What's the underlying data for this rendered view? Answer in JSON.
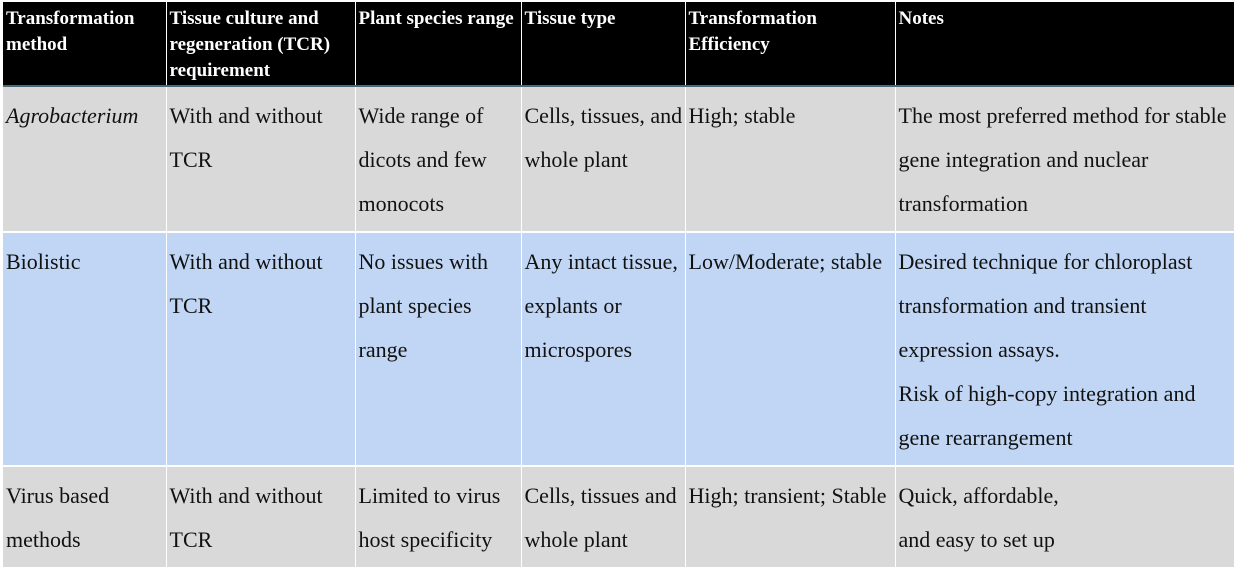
{
  "columns": [
    "Transformation method",
    "Tissue culture and regeneration (TCR) requirement",
    "Plant species range",
    "Tissue type",
    "Transformation Efficiency",
    "Notes"
  ],
  "rows": [
    {
      "method": "Agrobacterium",
      "tcr": "With and without TCR",
      "species": "Wide range of dicots and few monocots",
      "tissue": "Cells, tissues, and whole plant",
      "efficiency": "High; stable",
      "notes": [
        "The most preferred method for stable gene integration and nuclear transformation"
      ]
    },
    {
      "method": "Biolistic",
      "tcr": "With and without TCR",
      "species": "No issues with plant species range",
      "tissue": "Any intact tissue, explants or microspores",
      "efficiency": "Low/Moderate; stable",
      "notes": [
        "Desired technique for chloroplast transformation and transient expression assays.",
        "Risk of high-copy integration and gene rearrangement"
      ]
    },
    {
      "method": "Virus based methods",
      "tcr": "With and without TCR",
      "species": "Limited to virus host specificity",
      "tissue": "Cells, tissues and whole plant",
      "efficiency": "High; transient; Stable",
      "notes": [
        "Quick, affordable,",
        "and easy to set up"
      ]
    }
  ],
  "colors": {
    "header_bg": "#000000",
    "header_text": "#ffffff",
    "row_grey": "#d9d9d9",
    "row_blue": "#c0d6f4"
  }
}
